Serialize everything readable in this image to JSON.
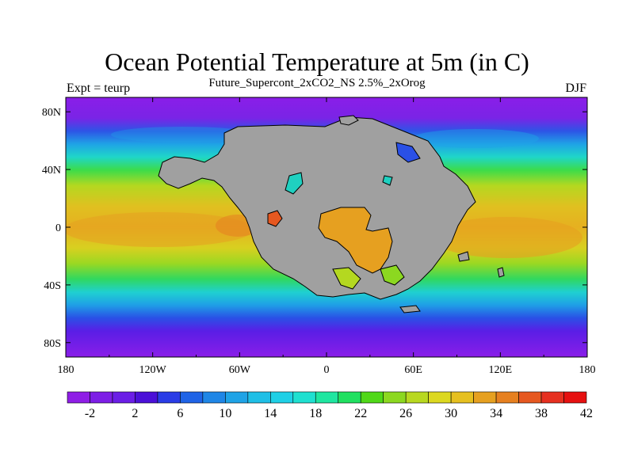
{
  "title": "Ocean Potential Temperature at 5m (in C)",
  "subtitle": "Future_Supercont_2xCO2_NS 2.5%_2xOrog",
  "left_label": "Expt = teurp",
  "right_label": "DJF",
  "map": {
    "longitude_ticks": [
      "180",
      "120W",
      "60W",
      "0",
      "60E",
      "120E",
      "180"
    ],
    "latitude_ticks": [
      "80N",
      "40N",
      "0",
      "40S",
      "80S"
    ],
    "land_color": "#a0a0a0"
  },
  "colorbar": {
    "colors": [
      "#8f1ee6",
      "#7d1ee6",
      "#6b1ee6",
      "#4b10d8",
      "#2a3ce6",
      "#1f63e6",
      "#1f86e6",
      "#1fa3e6",
      "#1fbfe6",
      "#1fd0e6",
      "#1fe0d0",
      "#1fe6a0",
      "#20e060",
      "#50d818",
      "#8cd820",
      "#b8d820",
      "#dcd820",
      "#e6c020",
      "#e6a020",
      "#e68020",
      "#e65820",
      "#e63020",
      "#e61010"
    ],
    "labels": [
      "-2",
      "2",
      "6",
      "10",
      "14",
      "18",
      "22",
      "26",
      "30",
      "34",
      "38",
      "42"
    ]
  }
}
